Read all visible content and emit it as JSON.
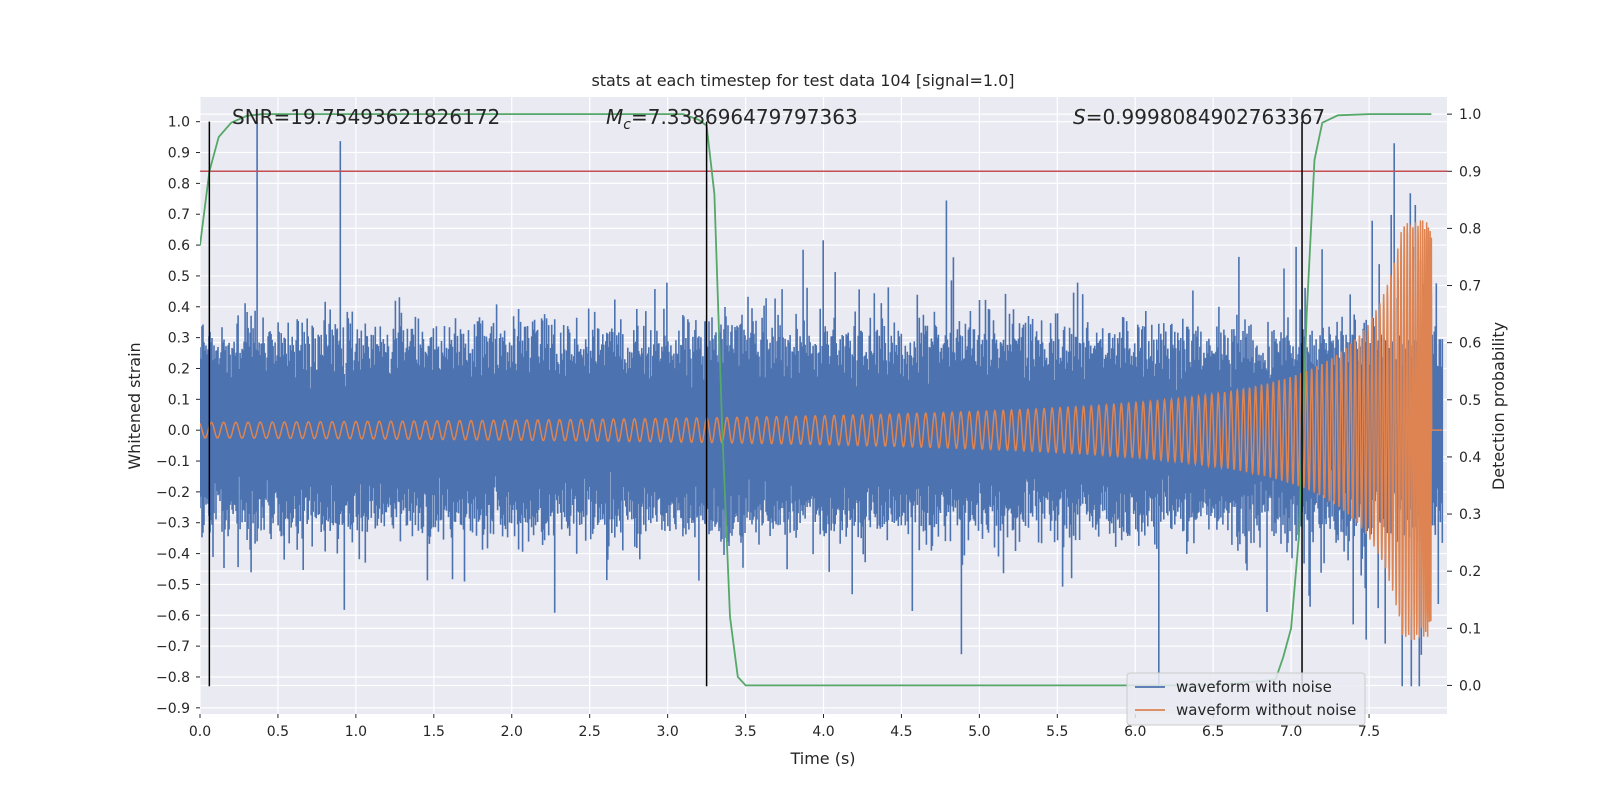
{
  "chart_data": {
    "type": "line",
    "title": "stats at each timestep for test data 104 [signal=1.0]",
    "xlabel": "Time (s)",
    "ylabel": "Whitened strain",
    "y2label": "Detection probability",
    "xlim": [
      0.0,
      8.0
    ],
    "ylim": [
      -0.92,
      1.08
    ],
    "y2lim": [
      -0.05,
      1.03
    ],
    "xticks": [
      "0.0",
      "0.5",
      "1.0",
      "1.5",
      "2.0",
      "2.5",
      "3.0",
      "3.5",
      "4.0",
      "4.5",
      "5.0",
      "5.5",
      "6.0",
      "6.5",
      "7.0",
      "7.5"
    ],
    "yticks": [
      "1.0",
      "0.9",
      "0.8",
      "0.7",
      "0.6",
      "0.5",
      "0.4",
      "0.3",
      "0.2",
      "0.1",
      "0.0",
      "−0.1",
      "−0.2",
      "−0.3",
      "−0.4",
      "−0.5",
      "−0.6",
      "−0.7",
      "−0.8",
      "−0.9"
    ],
    "y2ticks": [
      "1.0",
      "0.9",
      "0.8",
      "0.7",
      "0.6",
      "0.5",
      "0.4",
      "0.3",
      "0.2",
      "0.1",
      "0.0"
    ],
    "threshold": 0.9,
    "markers_x": [
      0.06,
      3.25,
      7.07
    ],
    "annotations": {
      "snr": "SNR=19.75493621826172",
      "mc_symbol": "M",
      "mc_sub": "c",
      "mc_value": "=7.338696479797363",
      "s_symbol": "S",
      "s_value": "=0.9998084902763367"
    },
    "series": [
      {
        "name": "waveform with noise",
        "color": "#4c72b0",
        "noise_amp": 0.28,
        "peak": 1.0,
        "min": -0.83
      },
      {
        "name": "waveform without noise",
        "color": "#dd8452",
        "start_amp": 0.025,
        "peak": 0.68,
        "merger_time": 7.9
      },
      {
        "name": "detection probability",
        "color": "#55a868",
        "x": [
          0.0,
          0.06,
          0.12,
          0.2,
          0.3,
          0.4,
          0.6,
          1.0,
          2.0,
          3.0,
          3.1,
          3.2,
          3.25,
          3.3,
          3.35,
          3.4,
          3.45,
          3.5,
          4.0,
          5.0,
          6.0,
          6.5,
          6.9,
          6.95,
          7.0,
          7.05,
          7.1,
          7.15,
          7.2,
          7.3,
          7.5,
          7.9
        ],
        "values": [
          0.77,
          0.9,
          0.96,
          0.985,
          0.997,
          1.0,
          1.0,
          1.0,
          1.0,
          1.0,
          1.0,
          0.99,
          0.98,
          0.86,
          0.45,
          0.12,
          0.015,
          0.0,
          0.0,
          0.0,
          0.0,
          0.0,
          0.01,
          0.05,
          0.1,
          0.26,
          0.65,
          0.92,
          0.985,
          0.998,
          1.0,
          1.0
        ]
      }
    ]
  }
}
